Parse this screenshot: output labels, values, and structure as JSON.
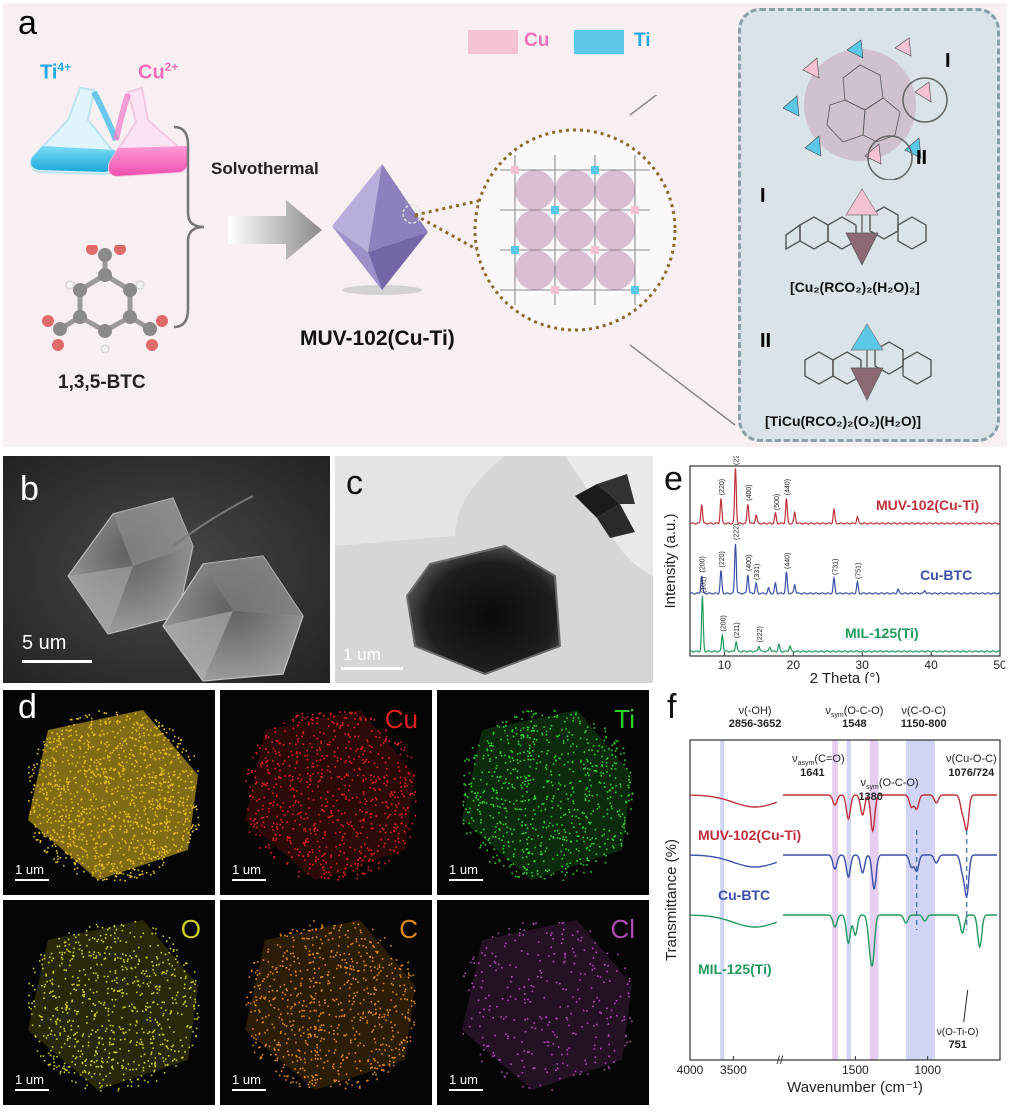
{
  "panels": {
    "a": "a",
    "b": "b",
    "c": "c",
    "d": "d",
    "e": "e",
    "f": "f"
  },
  "panel_a": {
    "ti_ion": "Ti",
    "ti_charge": "4+",
    "cu_ion": "Cu",
    "cu_charge": "2+",
    "linker": "1,3,5-BTC",
    "process": "Solvothermal",
    "product": "MUV-102(Cu-Ti)",
    "legend_cu": "Cu",
    "legend_ti": "Ti",
    "site_I": "I",
    "site_II": "II",
    "formula_I": "[Cu₂(RCO₂)₂(H₂O)₂]",
    "formula_II": "[TiCu(RCO₂)₂(O₂)(H₂O)]",
    "colors": {
      "cu": "#f4c2d2",
      "ti": "#5ac8e6",
      "octahedron": "#a99bcf",
      "accent_pink": "#f06fb8",
      "accent_blue": "#22a9e0"
    }
  },
  "panel_b": {
    "scale": "5 um"
  },
  "panel_c": {
    "scale": "1 um"
  },
  "panel_d": {
    "tiles": [
      {
        "label": "",
        "scale": "1 um",
        "color": "#e8c020"
      },
      {
        "label": "Cu",
        "scale": "1 um",
        "color": "#e0211d"
      },
      {
        "label": "Ti",
        "scale": "1 um",
        "color": "#2dd12d"
      },
      {
        "label": "O",
        "scale": "1 um",
        "color": "#cfcf1e"
      },
      {
        "label": "C",
        "scale": "1 um",
        "color": "#e08a12"
      },
      {
        "label": "Cl",
        "scale": "1 um",
        "color": "#b04ab4"
      }
    ]
  },
  "chart_data": [
    {
      "type": "line",
      "title": "",
      "xlabel": "2 Theta (°)",
      "ylabel": "Intensity (a.u.)",
      "xlim": [
        5,
        50
      ],
      "xticks": [
        10,
        20,
        30,
        40,
        50
      ],
      "series": [
        {
          "name": "MUV-102(Cu-Ti)",
          "color": "#c0303a",
          "peaks": [
            [
              6.7,
              0.35
            ],
            [
              9.5,
              0.45
            ],
            [
              11.6,
              1.0
            ],
            [
              13.4,
              0.35
            ],
            [
              14.6,
              0.15
            ],
            [
              17.4,
              0.18
            ],
            [
              19.0,
              0.45
            ],
            [
              20.2,
              0.2
            ],
            [
              25.9,
              0.25
            ],
            [
              29.3,
              0.12
            ]
          ],
          "labels": [
            [
              "(222)",
              11.6
            ],
            [
              "(220)",
              9.5
            ],
            [
              "(400)",
              13.4
            ],
            [
              "(500)",
              17.5
            ],
            [
              "(440)",
              19.0
            ]
          ]
        },
        {
          "name": "Cu-BTC",
          "color": "#3a4fa8",
          "peaks": [
            [
              6.7,
              0.35
            ],
            [
              9.5,
              0.45
            ],
            [
              11.6,
              1.0
            ],
            [
              13.4,
              0.38
            ],
            [
              14.6,
              0.2
            ],
            [
              16.4,
              0.1
            ],
            [
              17.4,
              0.2
            ],
            [
              19.0,
              0.42
            ],
            [
              20.2,
              0.18
            ],
            [
              25.9,
              0.3
            ],
            [
              29.3,
              0.22
            ],
            [
              35.2,
              0.08
            ],
            [
              39.1,
              0.06
            ]
          ],
          "labels": [
            [
              "(200)",
              6.7
            ],
            [
              "(220)",
              9.5
            ],
            [
              "(222)",
              11.6
            ],
            [
              "(400)",
              13.4
            ],
            [
              "(331)",
              14.6
            ],
            [
              "(440)",
              19.0
            ],
            [
              "(731)",
              26.0
            ],
            [
              "(751)",
              29.3
            ]
          ]
        },
        {
          "name": "MIL-125(Ti)",
          "color": "#1f9a5a",
          "peaks": [
            [
              6.8,
              1.0
            ],
            [
              9.7,
              0.3
            ],
            [
              11.7,
              0.18
            ],
            [
              15.0,
              0.1
            ],
            [
              16.6,
              0.08
            ],
            [
              17.9,
              0.12
            ],
            [
              19.5,
              0.1
            ]
          ],
          "labels": [
            [
              "(101)",
              6.8
            ],
            [
              "(200)",
              9.7
            ],
            [
              "(211)",
              11.7
            ],
            [
              "(222)",
              15.0
            ]
          ]
        }
      ]
    },
    {
      "type": "line",
      "title": "",
      "xlabel": "Wavenumber (cm⁻¹)",
      "ylabel": "Transmittance (%)",
      "xlim": [
        4000,
        500
      ],
      "xticks": [
        4000,
        3500,
        1500,
        1000
      ],
      "bands": [
        {
          "label": "ν(-OH)",
          "range": "2856-3652"
        },
        {
          "label": "νasym(C=O)",
          "range": "1641"
        },
        {
          "label": "νsym(O-C-O)",
          "range": "1548"
        },
        {
          "label": "νsym(O-C-O)",
          "range": "1380"
        },
        {
          "label": "ν(C-O-C)",
          "range": "1150-800"
        },
        {
          "label": "ν(Cu-O-C)",
          "range": "1076/724"
        },
        {
          "label": "ν(O-Ti-O)",
          "range": "751"
        }
      ],
      "series": [
        {
          "name": "MUV-102(Cu-Ti)",
          "color": "#c0303a"
        },
        {
          "name": "Cu-BTC",
          "color": "#3a4fa8"
        },
        {
          "name": "MIL-125(Ti)",
          "color": "#1f9a5a"
        }
      ]
    }
  ],
  "labels_f": {
    "oh": "ν(-OH)",
    "oh_range": "2856-3652",
    "oco": "O-C-O",
    "oco_val": "1548",
    "coc": "ν(C-O-C)",
    "coc_range": "1150-800",
    "co_asym_val": "1641",
    "oco2_val": "1380",
    "cuoc": "ν(Cu-O-C)",
    "cuoc_val": "1076/724",
    "otio": "ν(O-Ti-O)",
    "otio_val": "751",
    "nu": "ν",
    "sym": "sym",
    "asym": "asym",
    "ceo": "(C=O)",
    "oco_paren": "(O-C-O)"
  }
}
